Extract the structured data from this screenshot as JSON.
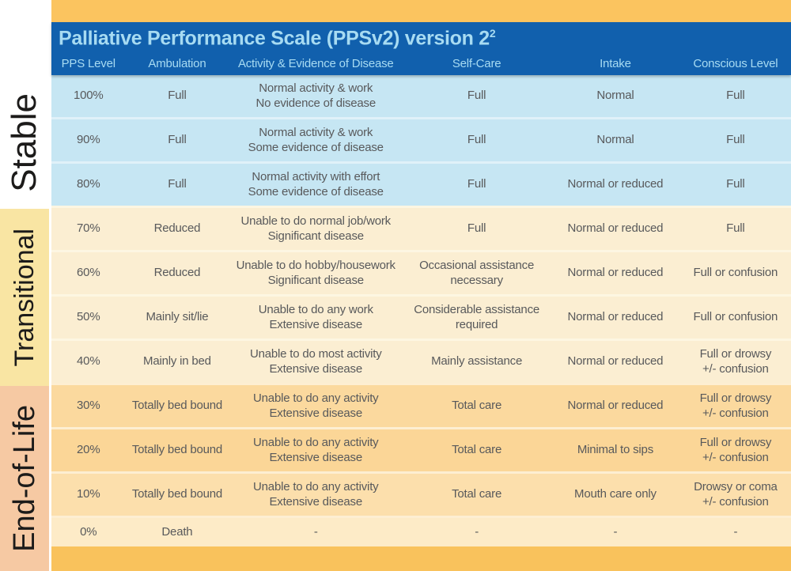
{
  "header": {
    "title": "Palliative Performance Scale (PPSv2) version 2",
    "title_superscript": "2",
    "columns": [
      "PPS Level",
      "Ambulation",
      "Activity & Evidence of Disease",
      "Self-Care",
      "Intake",
      "Conscious Level"
    ]
  },
  "colors": {
    "header_blue": "#1160ad",
    "header_text_blue": "#a7dbf2",
    "accent_orange": "#fbc45f",
    "stable_row_blue": "#c6e6f3",
    "transitional_row_cream": "#fbeed2",
    "eol_row_gold": "#fbd99e",
    "transitional_strip_yellow": "#f9e5a3",
    "eol_strip_salmon": "#f6c9a3",
    "cell_text_gray": "#58595b"
  },
  "sections": [
    {
      "id": "stable",
      "label": "Stable",
      "row_color": "#c6e6f3",
      "sep_color": "#e0f1f9",
      "rows": [
        {
          "level": "100%",
          "ambulation": [
            "Full"
          ],
          "activity": [
            "Normal activity & work",
            "No evidence of disease"
          ],
          "self_care": [
            "Full"
          ],
          "intake": [
            "Normal"
          ],
          "conscious": [
            "Full"
          ]
        },
        {
          "level": "90%",
          "ambulation": [
            "Full"
          ],
          "activity": [
            "Normal activity & work",
            "Some evidence of disease"
          ],
          "self_care": [
            "Full"
          ],
          "intake": [
            "Normal"
          ],
          "conscious": [
            "Full"
          ]
        },
        {
          "level": "80%",
          "ambulation": [
            "Full"
          ],
          "activity": [
            "Normal activity with effort",
            "Some evidence of disease"
          ],
          "self_care": [
            "Full"
          ],
          "intake": [
            "Normal or reduced"
          ],
          "conscious": [
            "Full"
          ]
        }
      ]
    },
    {
      "id": "transitional",
      "label": "Transitional",
      "row_color": "#fbeed2",
      "sep_color": "#fdf6e2",
      "rows": [
        {
          "level": "70%",
          "ambulation": [
            "Reduced"
          ],
          "activity": [
            "Unable to do normal job/work",
            "Significant disease"
          ],
          "self_care": [
            "Full"
          ],
          "intake": [
            "Normal or reduced"
          ],
          "conscious": [
            "Full"
          ]
        },
        {
          "level": "60%",
          "ambulation": [
            "Reduced"
          ],
          "activity": [
            "Unable to do hobby/housework",
            "Significant disease"
          ],
          "self_care": [
            "Occasional assistance",
            "necessary"
          ],
          "intake": [
            "Normal or reduced"
          ],
          "conscious": [
            "Full or confusion"
          ]
        },
        {
          "level": "50%",
          "ambulation": [
            "Mainly sit/lie"
          ],
          "activity": [
            "Unable to do any work",
            "Extensive disease"
          ],
          "self_care": [
            "Considerable assistance",
            "required"
          ],
          "intake": [
            "Normal or reduced"
          ],
          "conscious": [
            "Full or confusion"
          ]
        },
        {
          "level": "40%",
          "ambulation": [
            "Mainly in bed"
          ],
          "activity": [
            "Unable to do most activity",
            "Extensive disease"
          ],
          "self_care": [
            "Mainly assistance"
          ],
          "intake": [
            "Normal or reduced"
          ],
          "conscious": [
            "Full or drowsy",
            "+/- confusion"
          ]
        }
      ]
    },
    {
      "id": "end-of-life",
      "label": "End-of-Life",
      "row_color": "#fbd99e",
      "sep_color": "#fdeed2",
      "rows": [
        {
          "level": "30%",
          "ambulation": [
            "Totally bed bound"
          ],
          "activity": [
            "Unable to do any activity",
            "Extensive disease"
          ],
          "self_care": [
            "Total care"
          ],
          "intake": [
            "Normal or reduced"
          ],
          "conscious": [
            "Full or drowsy",
            "+/- confusion"
          ]
        },
        {
          "level": "20%",
          "ambulation": [
            "Totally bed bound"
          ],
          "activity": [
            "Unable to do any activity",
            "Extensive disease"
          ],
          "self_care": [
            "Total care"
          ],
          "intake": [
            "Minimal to sips"
          ],
          "conscious": [
            "Full or drowsy",
            "+/- confusion"
          ],
          "bg": "#fbd697"
        },
        {
          "level": "10%",
          "ambulation": [
            "Totally bed bound"
          ],
          "activity": [
            "Unable to do any activity",
            "Extensive disease"
          ],
          "self_care": [
            "Total care"
          ],
          "intake": [
            "Mouth care only"
          ],
          "conscious": [
            "Drowsy or coma",
            "+/- confusion"
          ],
          "bg": "#fcdfac"
        },
        {
          "level": "0%",
          "ambulation": [
            "Death"
          ],
          "activity": [
            "-"
          ],
          "self_care": [
            "-"
          ],
          "intake": [
            "-"
          ],
          "conscious": [
            "-"
          ],
          "bg": "#fdebc7",
          "short": true
        }
      ]
    }
  ]
}
